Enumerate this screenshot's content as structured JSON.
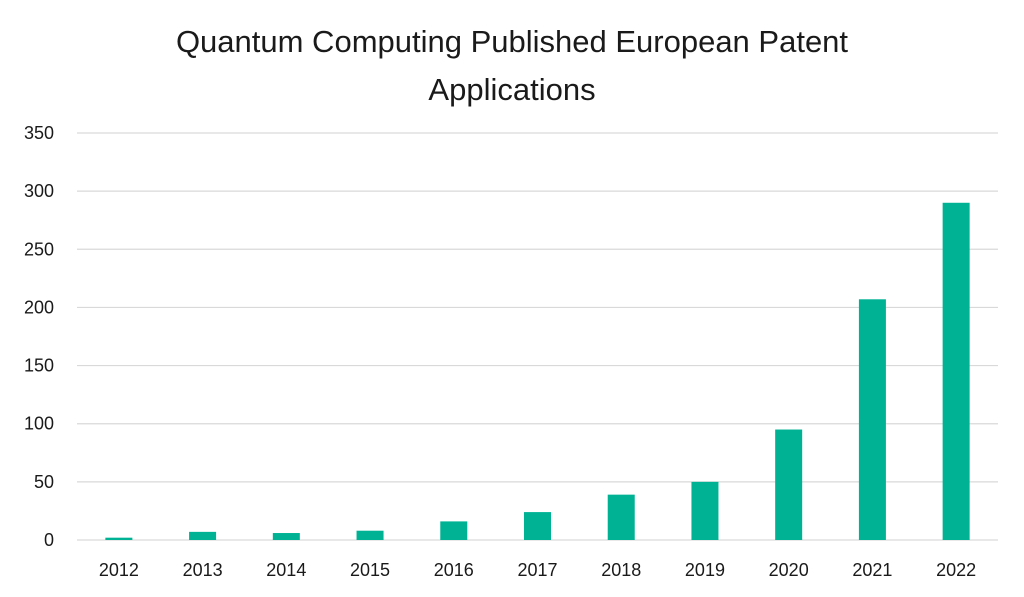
{
  "chart_data": {
    "type": "bar",
    "title": "Quantum Computing Published European Patent Applications",
    "xlabel": "",
    "ylabel": "",
    "categories": [
      "2012",
      "2013",
      "2014",
      "2015",
      "2016",
      "2017",
      "2018",
      "2019",
      "2020",
      "2021",
      "2022"
    ],
    "values": [
      2,
      7,
      6,
      8,
      16,
      24,
      39,
      50,
      95,
      207,
      290
    ],
    "ylim": [
      0,
      350
    ],
    "yticks": [
      0,
      50,
      100,
      150,
      200,
      250,
      300,
      350
    ],
    "grid": true,
    "legend": "none",
    "bar_color": "#00b294",
    "grid_color": "#d9d9d9"
  }
}
